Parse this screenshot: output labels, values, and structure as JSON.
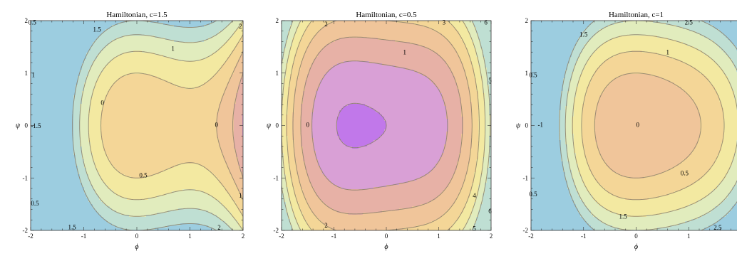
{
  "chart_data": [
    {
      "type": "contour",
      "title": "Hamiltonian, c=1.5",
      "xlabel": "ϕ",
      "ylabel": "ψ",
      "xlim": [
        -2,
        2
      ],
      "ylim": [
        -2,
        2
      ],
      "xticks": [
        "-2",
        "-1",
        "0",
        "1",
        "2"
      ],
      "yticks": [
        "-2",
        "-1",
        "0",
        "1",
        "2"
      ],
      "c": 1.5,
      "levels": [
        -1.5,
        -1,
        -0.5,
        0,
        0.5,
        1,
        1.5,
        2
      ],
      "contour_labels": [
        {
          "text": "0.5",
          "x": -1.97,
          "y": 1.95
        },
        {
          "text": "1.5",
          "x": -0.75,
          "y": 1.82
        },
        {
          "text": "2",
          "x": 1.95,
          "y": 1.88
        },
        {
          "text": "1",
          "x": 0.68,
          "y": 1.45
        },
        {
          "text": "1",
          "x": -1.95,
          "y": 0.95
        },
        {
          "text": "0",
          "x": -0.65,
          "y": 0.42
        },
        {
          "text": "-1.5",
          "x": -1.9,
          "y": -0.02
        },
        {
          "text": "0",
          "x": 1.5,
          "y": 0.0
        },
        {
          "text": "0.5",
          "x": 0.12,
          "y": -0.96
        },
        {
          "text": "1",
          "x": 1.95,
          "y": -1.35
        },
        {
          "text": "0.5",
          "x": -1.92,
          "y": -1.5
        },
        {
          "text": "1.5",
          "x": -1.22,
          "y": -1.95
        },
        {
          "text": "2",
          "x": 1.55,
          "y": -1.96
        }
      ]
    },
    {
      "type": "contour",
      "title": "Hamiltonian, c=0.5",
      "xlabel": "ϕ",
      "ylabel": "ψ",
      "xlim": [
        -2,
        2
      ],
      "ylim": [
        -2,
        2
      ],
      "xticks": [
        "-2",
        "-1",
        "0",
        "1",
        "2"
      ],
      "yticks": [
        "-2",
        "-1",
        "0",
        "1",
        "2"
      ],
      "c": 0.5,
      "levels": [
        0,
        1,
        2,
        3,
        4,
        5,
        6
      ],
      "contour_labels": [
        {
          "text": "2",
          "x": -1.15,
          "y": 1.92
        },
        {
          "text": "3",
          "x": 1.1,
          "y": 1.95
        },
        {
          "text": "6",
          "x": 1.9,
          "y": 1.95
        },
        {
          "text": "1",
          "x": 0.35,
          "y": 1.38
        },
        {
          "text": "5",
          "x": 1.98,
          "y": 0.85
        },
        {
          "text": "0",
          "x": -1.5,
          "y": 0.0
        },
        {
          "text": "4",
          "x": 1.68,
          "y": -1.35
        },
        {
          "text": "6",
          "x": 1.98,
          "y": -1.65
        },
        {
          "text": "2",
          "x": -1.15,
          "y": -1.92
        },
        {
          "text": "5",
          "x": 1.68,
          "y": -1.98
        }
      ]
    },
    {
      "type": "contour",
      "title": "Hamiltonian, c=1",
      "xlabel": "ϕ",
      "ylabel": "ψ",
      "xlim": [
        -2,
        2
      ],
      "ylim": [
        -2,
        2
      ],
      "xticks": [
        "-2",
        "-1",
        "0",
        "1",
        "2"
      ],
      "yticks": [
        "-2",
        "-1",
        "0",
        "1",
        "2"
      ],
      "c": 1,
      "levels": [
        -1,
        -0.5,
        0,
        0.5,
        1,
        1.5,
        2,
        2.5
      ],
      "contour_labels": [
        {
          "text": "2.5",
          "x": 1.0,
          "y": 1.95
        },
        {
          "text": "2",
          "x": 2.05,
          "y": 1.8
        },
        {
          "text": "1.5",
          "x": -1.0,
          "y": 1.72
        },
        {
          "text": "1",
          "x": 0.6,
          "y": 1.38
        },
        {
          "text": "0.5",
          "x": -1.96,
          "y": 0.95
        },
        {
          "text": "-1",
          "x": -1.82,
          "y": 0.0
        },
        {
          "text": "0",
          "x": 0.03,
          "y": 0.0
        },
        {
          "text": "0.5",
          "x": 0.92,
          "y": -0.92
        },
        {
          "text": "2",
          "x": 2.05,
          "y": -1.1
        },
        {
          "text": "0.5",
          "x": -1.96,
          "y": -1.32
        },
        {
          "text": "1.5",
          "x": -0.25,
          "y": -1.75
        },
        {
          "text": "2.5",
          "x": 1.55,
          "y": -1.96
        }
      ]
    }
  ]
}
